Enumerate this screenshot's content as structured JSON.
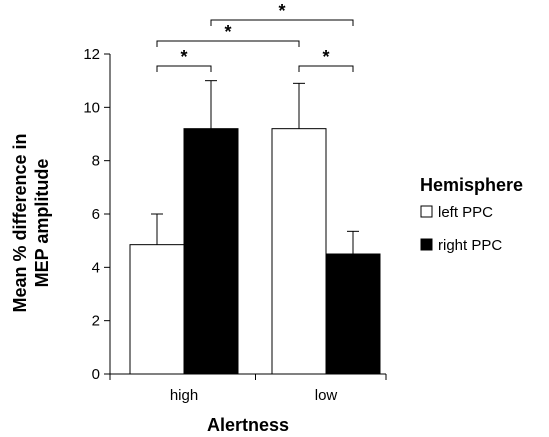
{
  "chart_data": {
    "type": "bar",
    "xlabel": "Alertness",
    "ylabel_lines": [
      "Mean % difference in",
      "MEP amplitude"
    ],
    "categories": [
      "high",
      "low"
    ],
    "ylim": [
      0,
      12
    ],
    "yticks": [
      0,
      2,
      4,
      6,
      8,
      10,
      12
    ],
    "legend": {
      "title": "Hemisphere",
      "position": "right"
    },
    "series": [
      {
        "name": "left PPC",
        "color": "#ffffff",
        "values": [
          4.85,
          9.2
        ],
        "errors": [
          1.15,
          1.7
        ]
      },
      {
        "name": "right PPC",
        "color": "#000000",
        "values": [
          9.2,
          4.5
        ],
        "errors": [
          1.8,
          0.85
        ]
      }
    ],
    "significance": [
      {
        "label": "*",
        "between": "left PPC high vs right PPC high"
      },
      {
        "label": "*",
        "between": "left PPC low vs right PPC low"
      },
      {
        "label": "*",
        "between": "high vs low (left PPC)"
      },
      {
        "label": "*",
        "between": "high vs low (right PPC)"
      }
    ]
  }
}
